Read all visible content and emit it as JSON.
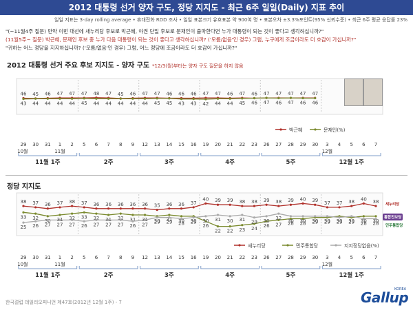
{
  "header": {
    "title": "2012 대통령 선거 양자 구도, 정당 지지도 - 최근 6주 일일(Daily) 지표 추이"
  },
  "subnote": "일일 지표는 3-day rolling average • 휴대전화 RDD 조사 • 일일 표본크기 유효표본 약 900여 명 • 표본오차 ±3.3%포인트(95% 신뢰수준) • 최근 6주 평균 응답률 23%",
  "questions": {
    "q1": "\"(~11월4주 질문) 만약 이번 대선에 새누리당 후보로 박근혜, 야권 단일 후보로 문재인이 출마한다면 누가 대통령이 되는 것이 좋다고 생각하십니까?\"",
    "q2": "(11월5주~ 질문) 박근혜, 문재인 후보 중 누가 다음 대통령이 되는 것이 좋다고 생각하십니까? ('모름/없음'인 경우) 그럼, 누구에게 조금이라도 더 호감이 가십니까?\"",
    "q3": "\"귀하는 어느 정당을 지지하십니까? ('모름/없음'인 경우) 그럼, 어느 정당에 조금이라도 더 호감이 가십니까?\""
  },
  "sections": {
    "s1_title": "2012 대통령 선거 주요 후보 지지도 - 양자 구도",
    "s1_note": "*12/3(월)부터는 양자 구도 질문을 하지 않음",
    "s2_title": "정당 지지도"
  },
  "footer": "한국갤럽 데일리오피니언 제47호(2012년 12월 1주) - 7",
  "logo": {
    "name": "Gallup",
    "korea": "KOREA"
  },
  "party_badges": {
    "saenuri": "새누리당",
    "tonghap": "통합진보당",
    "minju": "민주통합당"
  },
  "chart_data": [
    {
      "type": "line",
      "x": [
        "29",
        "30",
        "31",
        "1",
        "2",
        "5",
        "6",
        "7",
        "8",
        "9",
        "12",
        "13",
        "14",
        "15",
        "16",
        "19",
        "20",
        "21",
        "22",
        "23",
        "26",
        "27",
        "28",
        "29",
        "30",
        "3",
        "4",
        "5",
        "6",
        "7"
      ],
      "month_labels": [
        "10월",
        "11월",
        "12월"
      ],
      "week_labels": [
        "11월 1주",
        "2주",
        "3주",
        "4주",
        "5주",
        "12월 1주"
      ],
      "ylim": [
        0,
        100
      ],
      "series": [
        {
          "name": "박근혜",
          "color": "#b0302a",
          "values": [
            46,
            45,
            46,
            47,
            47,
            47,
            48,
            47,
            45,
            46,
            47,
            47,
            46,
            46,
            46,
            47,
            47,
            46,
            47,
            46,
            47,
            47,
            47,
            47,
            47,
            null,
            null,
            null,
            null,
            null
          ]
        },
        {
          "name": "문재인(%)",
          "color": "#7a8a2e",
          "values": [
            43,
            44,
            44,
            44,
            44,
            45,
            44,
            44,
            44,
            44,
            44,
            45,
            45,
            43,
            43,
            42,
            44,
            44,
            45,
            46,
            47,
            46,
            47,
            46,
            46,
            null,
            null,
            null,
            null,
            null
          ]
        }
      ]
    },
    {
      "type": "line",
      "x": [
        "29",
        "30",
        "31",
        "1",
        "2",
        "5",
        "6",
        "7",
        "8",
        "9",
        "12",
        "13",
        "14",
        "15",
        "16",
        "19",
        "20",
        "21",
        "22",
        "23",
        "26",
        "27",
        "28",
        "29",
        "30",
        "3",
        "4",
        "5",
        "6",
        "7"
      ],
      "month_labels": [
        "10월",
        "11월",
        "12월"
      ],
      "week_labels": [
        "11월 1주",
        "2주",
        "3주",
        "4주",
        "5주",
        "12월 1주"
      ],
      "ylim": [
        0,
        60
      ],
      "series": [
        {
          "name": "새누리당",
          "color": "#b0302a",
          "values": [
            38,
            37,
            36,
            37,
            38,
            37,
            36,
            36,
            36,
            36,
            36,
            35,
            36,
            36,
            37,
            40,
            39,
            39,
            38,
            38,
            39,
            38,
            39,
            40,
            39,
            37,
            37,
            38,
            40,
            38
          ]
        },
        {
          "name": "민주통합당",
          "color": "#7a8a2e",
          "values": [
            33,
            32,
            30,
            31,
            32,
            33,
            32,
            31,
            32,
            31,
            31,
            30,
            31,
            30,
            30,
            26,
            22,
            22,
            23,
            24,
            26,
            27,
            28,
            28,
            29,
            29,
            30,
            29,
            30,
            30
          ]
        },
        {
          "name": "지지정당없음(%)",
          "color": "#aaaaaa",
          "values": [
            25,
            26,
            27,
            27,
            27,
            26,
            27,
            27,
            27,
            26,
            27,
            29,
            29,
            28,
            29,
            30,
            31,
            30,
            31,
            29,
            30,
            32,
            30,
            30,
            30,
            30,
            29,
            30,
            28,
            28
          ]
        }
      ]
    }
  ]
}
